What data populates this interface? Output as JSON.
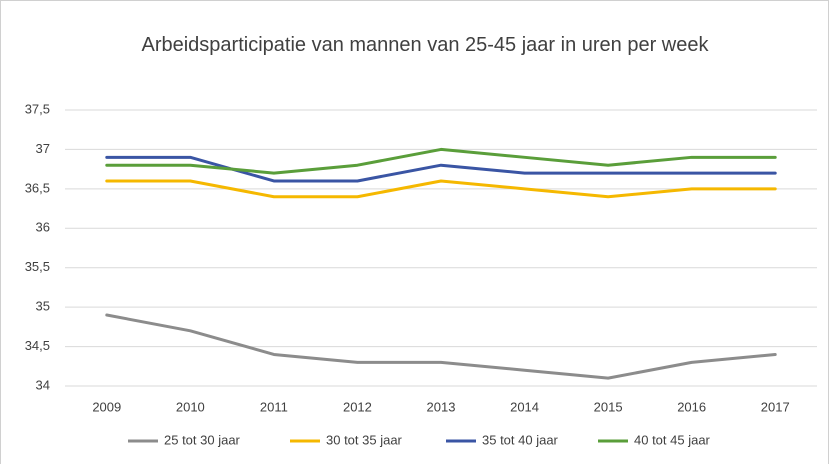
{
  "chart_data": {
    "type": "line",
    "title": "Arbeidsparticipatie van mannen van 25-45 jaar in uren per week",
    "categories": [
      "2009",
      "2010",
      "2011",
      "2012",
      "2013",
      "2014",
      "2015",
      "2016",
      "2017"
    ],
    "series": [
      {
        "name": "25 tot 30 jaar",
        "color": "#8c8c8c",
        "values": [
          34.9,
          34.7,
          34.4,
          34.3,
          34.3,
          34.2,
          34.1,
          34.3,
          34.4
        ]
      },
      {
        "name": "30 tot 35 jaar",
        "color": "#f5b800",
        "values": [
          36.6,
          36.6,
          36.4,
          36.4,
          36.6,
          36.5,
          36.4,
          36.5,
          36.5
        ]
      },
      {
        "name": "35 tot 40 jaar",
        "color": "#3a55a4",
        "values": [
          36.9,
          36.9,
          36.6,
          36.6,
          36.8,
          36.7,
          36.7,
          36.7,
          36.7
        ]
      },
      {
        "name": "40 tot 45 jaar",
        "color": "#5a9e3a",
        "values": [
          36.8,
          36.8,
          36.7,
          36.8,
          37.0,
          36.9,
          36.8,
          36.9,
          36.9
        ]
      }
    ],
    "ylim": [
      34,
      37.5
    ],
    "yticks": [
      34,
      {
        "value": 34.5,
        "label": "34,5"
      },
      35,
      {
        "value": 35.5,
        "label": "35,5"
      },
      36,
      {
        "value": 36.5,
        "label": "36,5"
      },
      37,
      {
        "value": 37.5,
        "label": "37,5"
      }
    ],
    "grid": true,
    "legend": "bottom"
  }
}
